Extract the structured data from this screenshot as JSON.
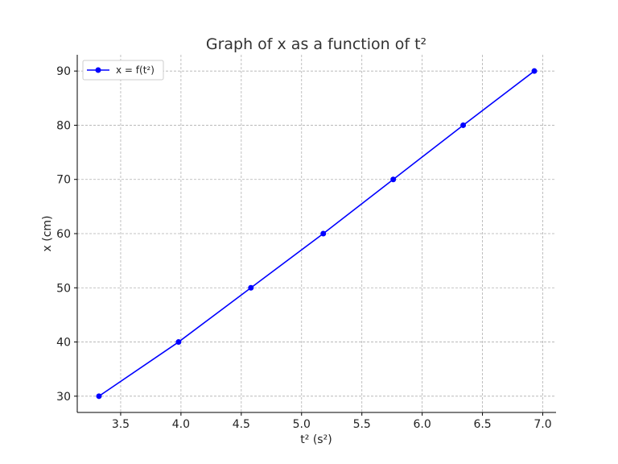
{
  "chart_data": {
    "type": "line",
    "title": "Graph of x as a function of t²",
    "xlabel": "t² (s²)",
    "ylabel": "x (cm)",
    "xlim": [
      3.14,
      7.11
    ],
    "ylim": [
      27.0,
      93.0
    ],
    "xticks": [
      3.5,
      4.0,
      4.5,
      5.0,
      5.5,
      6.0,
      6.5,
      7.0
    ],
    "xtick_labels": [
      "3.5",
      "4.0",
      "4.5",
      "5.0",
      "5.5",
      "6.0",
      "6.5",
      "7.0"
    ],
    "yticks": [
      30,
      40,
      50,
      60,
      70,
      80,
      90
    ],
    "ytick_labels": [
      "30",
      "40",
      "50",
      "60",
      "70",
      "80",
      "90"
    ],
    "grid": true,
    "legend_position": "top-left",
    "series": [
      {
        "name": "x = f(t²)",
        "color": "#0000ff",
        "marker": "circle",
        "x": [
          3.32,
          3.98,
          4.58,
          5.18,
          5.76,
          6.34,
          6.93
        ],
        "y": [
          30,
          40,
          50,
          60,
          70,
          80,
          90
        ]
      }
    ]
  }
}
